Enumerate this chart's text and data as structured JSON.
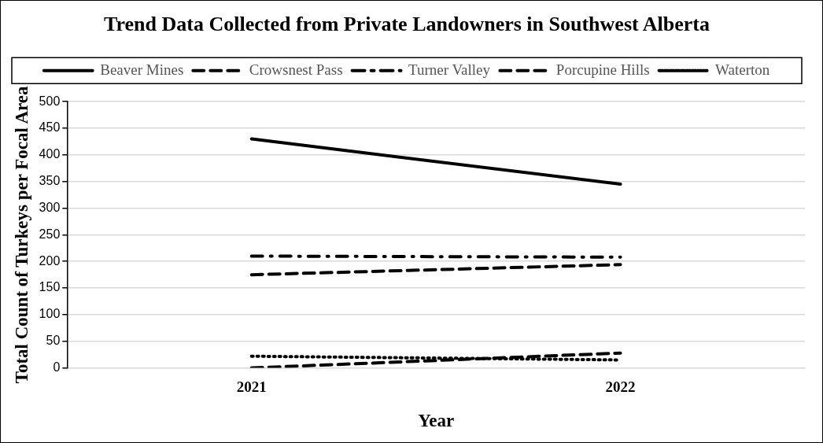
{
  "chart_data": {
    "type": "line",
    "title": "Trend Data Collected from Private Landowners in Southwest Alberta",
    "xlabel": "Year",
    "ylabel": "Total Count of Turkeys per Focal Area",
    "categories": [
      "2021",
      "2022"
    ],
    "series": [
      {
        "name": "Beaver Mines",
        "color": "#000000",
        "values": [
          430,
          345
        ],
        "line_style": "solid"
      },
      {
        "name": "Crowsnest Pass",
        "color": "#000000",
        "values": [
          175,
          194
        ],
        "line_style": "dashed"
      },
      {
        "name": "Turner Valley",
        "color": "#000000",
        "values": [
          210,
          208
        ],
        "line_style": "dashdot"
      },
      {
        "name": "Porcupine Hills",
        "color": "#000000",
        "values": [
          0,
          28
        ],
        "line_style": "dashed"
      },
      {
        "name": "Waterton",
        "color": "#000000",
        "values": [
          22,
          15
        ],
        "line_style": "dotted"
      }
    ],
    "ylim": [
      0,
      500
    ],
    "yticks": [
      0,
      50,
      100,
      150,
      200,
      250,
      300,
      350,
      400,
      450,
      500
    ],
    "grid": "y",
    "legend": "top",
    "marker": "none"
  }
}
